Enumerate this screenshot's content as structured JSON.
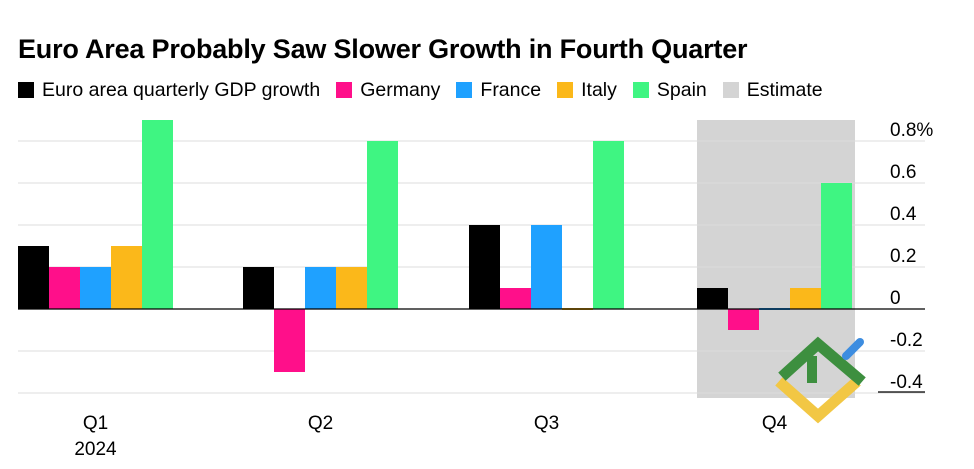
{
  "chart_data": {
    "type": "bar",
    "title": "Euro Area Probably Saw Slower Growth in Fourth Quarter",
    "categories": [
      "Q1",
      "Q2",
      "Q3",
      "Q4"
    ],
    "category_sublabel": "2024",
    "series": [
      {
        "name": "Euro area quarterly GDP growth",
        "color": "#000000",
        "values": [
          0.3,
          0.2,
          0.4,
          0.1
        ]
      },
      {
        "name": "Germany",
        "color": "#ff0f8a",
        "values": [
          0.2,
          -0.3,
          0.1,
          -0.1
        ]
      },
      {
        "name": "France",
        "color": "#1fa1ff",
        "values": [
          0.2,
          0.2,
          0.4,
          0.0
        ]
      },
      {
        "name": "Italy",
        "color": "#fbb81a",
        "values": [
          0.3,
          0.2,
          0.0,
          0.1
        ]
      },
      {
        "name": "Spain",
        "color": "#3ff582",
        "values": [
          0.9,
          0.8,
          0.8,
          0.6
        ]
      }
    ],
    "estimate": {
      "label": "Estimate",
      "color": "#d4d4d4",
      "category": "Q4"
    },
    "ylim": [
      -0.4,
      0.9
    ],
    "yticks": [
      0.8,
      0.6,
      0.4,
      0.2,
      0,
      -0.2,
      -0.4
    ],
    "ytick_labels": [
      "0.8%",
      "0.6",
      "0.4",
      "0.2",
      "0",
      "-0.2",
      "-0.4"
    ],
    "xlabel": "",
    "ylabel": "",
    "grid": true,
    "legend_position": "top"
  }
}
